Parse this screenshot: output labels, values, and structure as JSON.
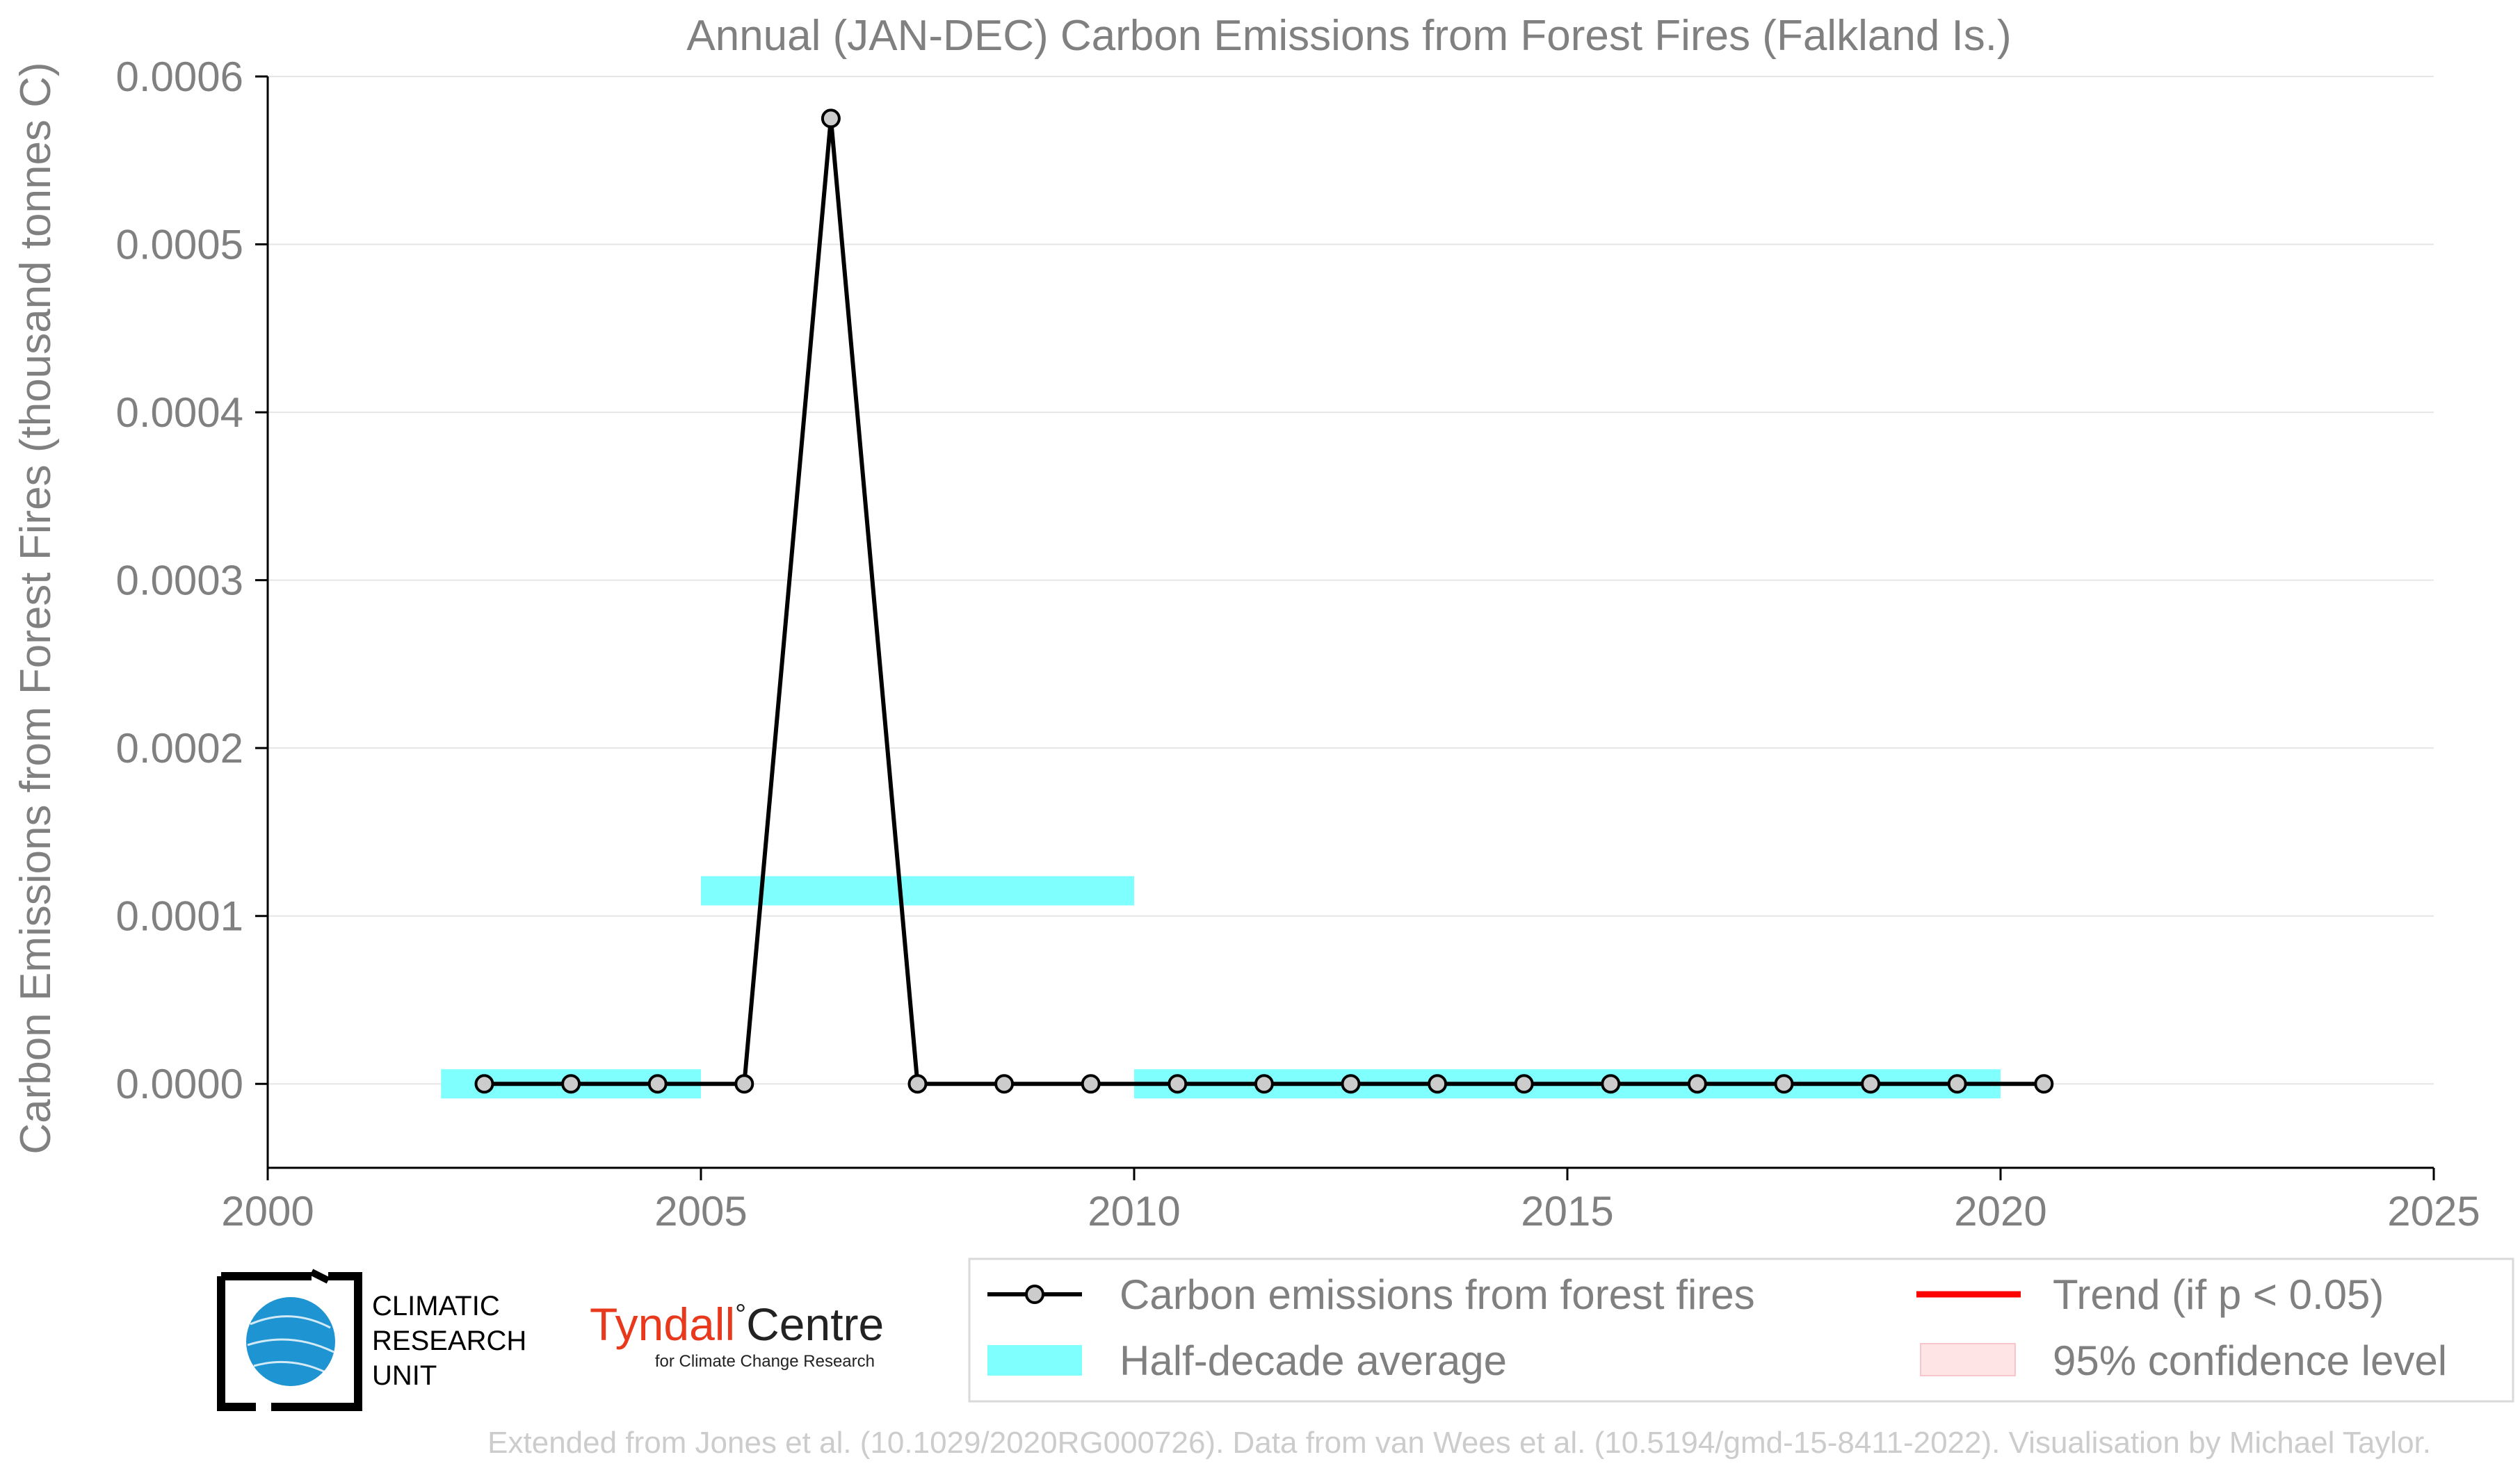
{
  "chart_data": {
    "type": "line",
    "title": "Annual (JAN-DEC) Carbon Emissions from Forest Fires (Falkland Is.)",
    "xlabel": "",
    "ylabel": "Carbon Emissions from Forest Fires (thousand tonnes C)",
    "xlim": [
      2000,
      2025
    ],
    "ylim": [
      -5e-05,
      0.0006
    ],
    "grid": true,
    "x_ticks": [
      2000,
      2005,
      2010,
      2015,
      2020,
      2025
    ],
    "y_ticks": [
      0.0,
      0.0001,
      0.0002,
      0.0003,
      0.0004,
      0.0005,
      0.0006
    ],
    "x_tick_labels": [
      "2000",
      "2005",
      "2010",
      "2015",
      "2020",
      "2025"
    ],
    "y_tick_labels": [
      "0.0000",
      "0.0001",
      "0.0002",
      "0.0003",
      "0.0004",
      "0.0005",
      "0.0006"
    ],
    "series": [
      {
        "name": "Carbon emissions from forest fires",
        "color": "#000000",
        "marker_fill": "#cccccc",
        "x": [
          2002.5,
          2003.5,
          2004.5,
          2005.5,
          2006.5,
          2007.5,
          2008.5,
          2009.5,
          2010.5,
          2011.5,
          2012.5,
          2013.5,
          2014.5,
          2015.5,
          2016.5,
          2017.5,
          2018.5,
          2019.5,
          2020.5
        ],
        "y": [
          0,
          0,
          0,
          0,
          0.000575,
          0,
          0,
          0,
          0,
          0,
          0,
          0,
          0,
          0,
          0,
          0,
          0,
          0,
          0
        ]
      }
    ],
    "half_decade_average": {
      "name": "Half-decade average",
      "color": "#80ffff",
      "segments": [
        {
          "x0": 2002,
          "x1": 2005,
          "y": 0.0
        },
        {
          "x0": 2005,
          "x1": 2010,
          "y": 0.000115
        },
        {
          "x0": 2010,
          "x1": 2020,
          "y": 0.0
        }
      ]
    },
    "legend": {
      "placement": "bottom-right",
      "entries": [
        {
          "label": "Carbon emissions from forest fires",
          "color": "#000000"
        },
        {
          "label": "Trend (if p < 0.05)",
          "color": "#ff0000"
        },
        {
          "label": "Half-decade average",
          "color": "#80ffff"
        },
        {
          "label": "95% confidence level",
          "color": "#ffe4e6"
        }
      ]
    }
  },
  "logos": {
    "cru_lines": [
      "CLIMATIC",
      "RESEARCH",
      "UNIT"
    ],
    "tyndall_word": "Tyndall",
    "tyndall_degree": "°",
    "tyndall_centre": "Centre",
    "tyndall_sub": "for Climate Change Research",
    "tyndall_color": "#e8391d"
  },
  "footer": {
    "credit": "Extended from Jones et al. (10.1029/2020RG000726). Data from van Wees et al. (10.5194/gmd-15-8411-2022). Visualisation by Michael Taylor."
  }
}
